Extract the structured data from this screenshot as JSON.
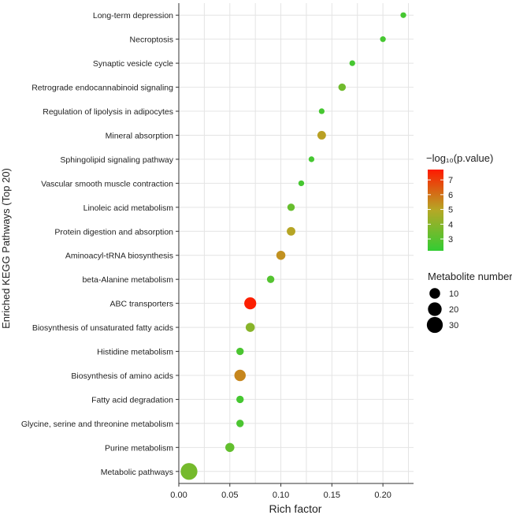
{
  "chart_data": {
    "type": "scatter",
    "title": "",
    "xlabel": "Rich factor",
    "ylabel": "Enriched KEGG Pathways (Top 20)",
    "xlim": [
      0.0,
      0.23
    ],
    "xticks": [
      0.0,
      0.05,
      0.1,
      0.15,
      0.2
    ],
    "xtick_labels": [
      "0.00",
      "0.05",
      "0.10",
      "0.15",
      "0.20"
    ],
    "grid": true,
    "points": [
      {
        "pathway": "Long-term depression",
        "rich_factor": 0.22,
        "neg_log10_p": 2.6,
        "metabolite_number": 1
      },
      {
        "pathway": "Necroptosis",
        "rich_factor": 0.2,
        "neg_log10_p": 2.6,
        "metabolite_number": 1
      },
      {
        "pathway": "Synaptic vesicle cycle",
        "rich_factor": 0.17,
        "neg_log10_p": 2.6,
        "metabolite_number": 1
      },
      {
        "pathway": "Retrograde endocannabinoid signaling",
        "rich_factor": 0.16,
        "neg_log10_p": 3.5,
        "metabolite_number": 3
      },
      {
        "pathway": "Regulation of lipolysis in adipocytes",
        "rich_factor": 0.14,
        "neg_log10_p": 2.6,
        "metabolite_number": 1
      },
      {
        "pathway": "Mineral absorption",
        "rich_factor": 0.14,
        "neg_log10_p": 5.1,
        "metabolite_number": 5
      },
      {
        "pathway": "Sphingolipid signaling pathway",
        "rich_factor": 0.13,
        "neg_log10_p": 2.6,
        "metabolite_number": 1
      },
      {
        "pathway": "Vascular smooth muscle contraction",
        "rich_factor": 0.12,
        "neg_log10_p": 2.6,
        "metabolite_number": 1
      },
      {
        "pathway": "Linoleic acid metabolism",
        "rich_factor": 0.11,
        "neg_log10_p": 3.3,
        "metabolite_number": 3
      },
      {
        "pathway": "Protein digestion and absorption",
        "rich_factor": 0.11,
        "neg_log10_p": 5.0,
        "metabolite_number": 5
      },
      {
        "pathway": "Aminoacyl-tRNA biosynthesis",
        "rich_factor": 0.1,
        "neg_log10_p": 5.4,
        "metabolite_number": 6
      },
      {
        "pathway": "beta-Alanine metabolism",
        "rich_factor": 0.09,
        "neg_log10_p": 2.9,
        "metabolite_number": 3
      },
      {
        "pathway": "ABC transporters",
        "rich_factor": 0.07,
        "neg_log10_p": 7.6,
        "metabolite_number": 14
      },
      {
        "pathway": "Biosynthesis of unsaturated fatty acids",
        "rich_factor": 0.07,
        "neg_log10_p": 4.0,
        "metabolite_number": 6
      },
      {
        "pathway": "Histidine metabolism",
        "rich_factor": 0.06,
        "neg_log10_p": 2.7,
        "metabolite_number": 3
      },
      {
        "pathway": "Biosynthesis of amino acids",
        "rich_factor": 0.06,
        "neg_log10_p": 5.6,
        "metabolite_number": 12
      },
      {
        "pathway": "Fatty acid degradation",
        "rich_factor": 0.06,
        "neg_log10_p": 2.6,
        "metabolite_number": 3
      },
      {
        "pathway": "Glycine, serine and threonine metabolism",
        "rich_factor": 0.06,
        "neg_log10_p": 2.7,
        "metabolite_number": 3
      },
      {
        "pathway": "Purine metabolism",
        "rich_factor": 0.05,
        "neg_log10_p": 3.2,
        "metabolite_number": 6
      },
      {
        "pathway": "Metabolic pathways",
        "rich_factor": 0.01,
        "neg_log10_p": 3.6,
        "metabolite_number": 34
      }
    ],
    "color_legend": {
      "title": "−log₁₀(p.value)",
      "min": 2.2,
      "max": 7.7,
      "ticks": [
        3,
        4,
        5,
        6,
        7
      ],
      "colors": [
        "#33cc33",
        "#ff1a00"
      ]
    },
    "size_legend": {
      "title": "Metabolite number",
      "values": [
        10,
        20,
        30
      ]
    }
  }
}
